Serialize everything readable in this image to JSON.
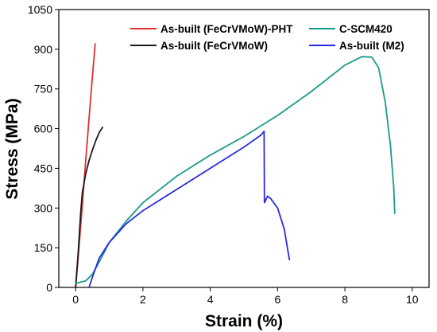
{
  "chart_data": {
    "type": "line",
    "title": "",
    "xlabel": "Strain (%)",
    "ylabel": "Stress (MPa)",
    "xlim": [
      -0.5,
      10.5
    ],
    "ylim": [
      0,
      1050
    ],
    "x_ticks": [
      0,
      2,
      4,
      6,
      8,
      10
    ],
    "y_ticks": [
      0,
      150,
      300,
      450,
      600,
      750,
      900,
      1050
    ],
    "x_tick_labels": [
      "0",
      "2",
      "4",
      "6",
      "8",
      "10"
    ],
    "y_tick_labels": [
      "0",
      "150",
      "300",
      "450",
      "600",
      "750",
      "900",
      "1050"
    ],
    "grid": false,
    "legend_position": "top",
    "series": [
      {
        "name": "As-built (FeCrVMoW)-PHT",
        "color": "#e03030",
        "x": [
          0.0,
          0.1,
          0.2,
          0.3,
          0.4,
          0.5,
          0.58
        ],
        "y": [
          0,
          150,
          315,
          480,
          640,
          800,
          920
        ]
      },
      {
        "name": "As-built (FeCrVMoW)",
        "color": "#1a1a1a",
        "x": [
          0.0,
          0.08,
          0.15,
          0.2,
          0.3,
          0.4,
          0.5,
          0.6,
          0.7,
          0.8
        ],
        "y": [
          0,
          140,
          280,
          360,
          430,
          480,
          520,
          555,
          585,
          605
        ]
      },
      {
        "name": "C-SCM420",
        "color": "#1a9a8a",
        "x": [
          0.0,
          0.3,
          0.5,
          0.8,
          1.0,
          1.5,
          2.0,
          3.0,
          4.0,
          5.0,
          6.0,
          7.0,
          7.5,
          8.0,
          8.5,
          8.8,
          9.0,
          9.2,
          9.35,
          9.45,
          9.48
        ],
        "y": [
          15,
          25,
          50,
          120,
          170,
          250,
          320,
          420,
          500,
          570,
          650,
          740,
          790,
          840,
          872,
          870,
          830,
          700,
          540,
          380,
          280
        ]
      },
      {
        "name": "As-built (M2)",
        "color": "#2a2ae0",
        "x": [
          0.4,
          0.5,
          0.7,
          1.0,
          1.5,
          2.0,
          3.0,
          4.0,
          5.0,
          5.5,
          5.6,
          5.61,
          5.65,
          5.7,
          5.8,
          6.0,
          6.2,
          6.35
        ],
        "y": [
          0,
          40,
          110,
          170,
          240,
          290,
          370,
          450,
          530,
          575,
          590,
          320,
          330,
          345,
          335,
          300,
          220,
          105
        ]
      }
    ]
  }
}
